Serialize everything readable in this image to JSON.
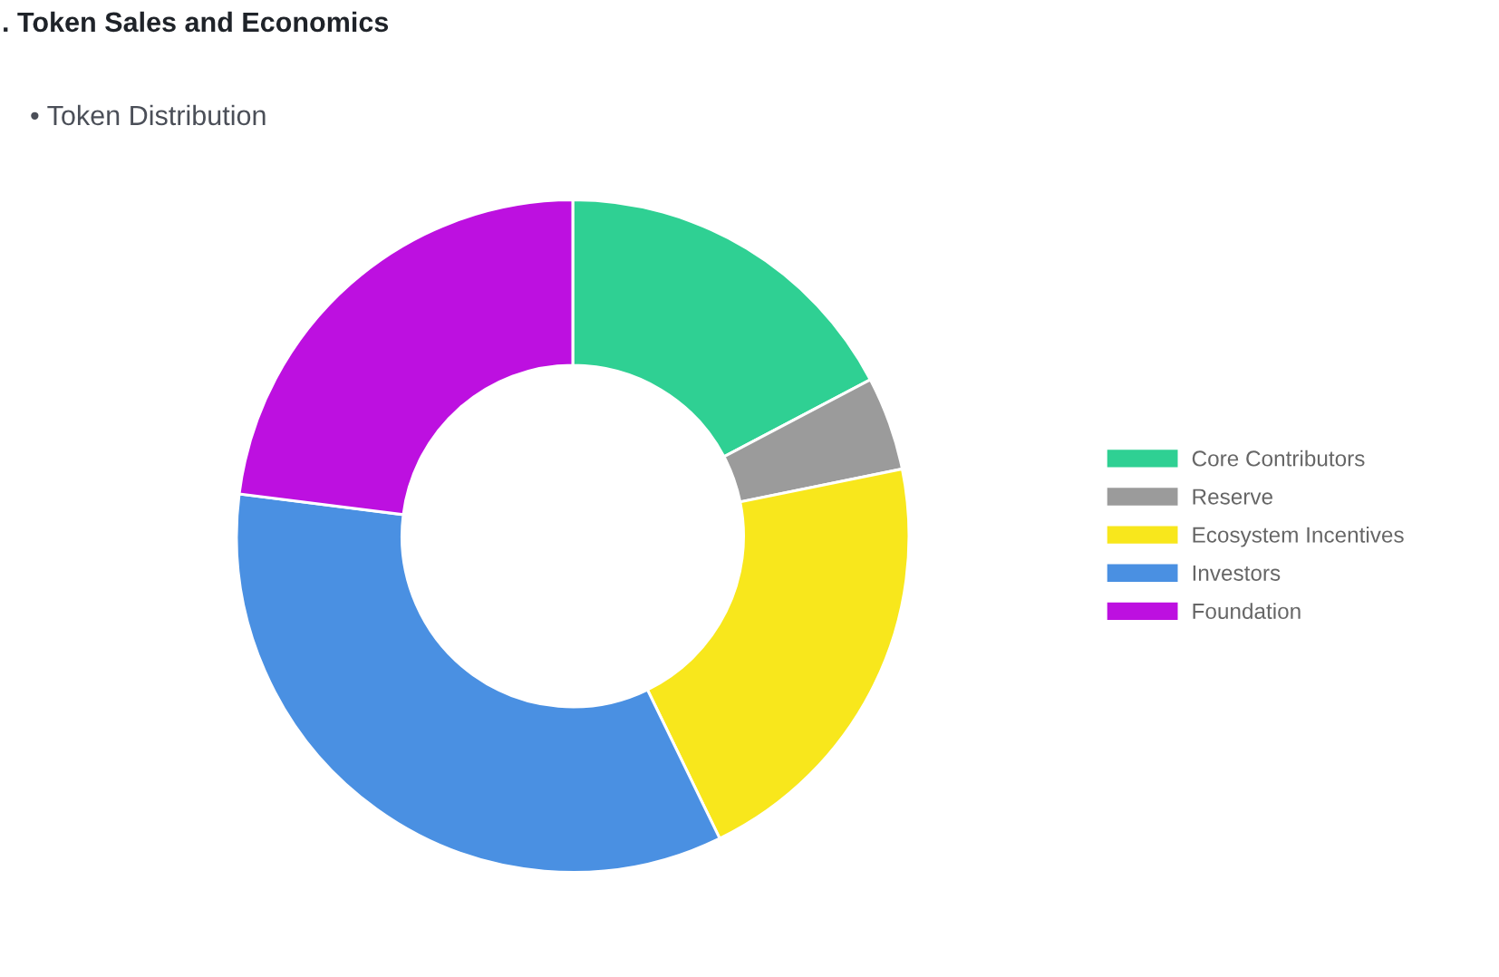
{
  "chart_data": {
    "type": "donut",
    "title": ". Token Sales and Economics",
    "subtitle": "• Token Distribution",
    "categories": [
      "Core Contributors",
      "Reserve",
      "Ecosystem Incentives",
      "Investors",
      "Foundation"
    ],
    "values": [
      17.3,
      4.5,
      21,
      34.2,
      23
    ],
    "colors": [
      "#2fd093",
      "#9b9b9b",
      "#f8e71c",
      "#4a90e2",
      "#bd10e0"
    ],
    "legend": "right"
  }
}
